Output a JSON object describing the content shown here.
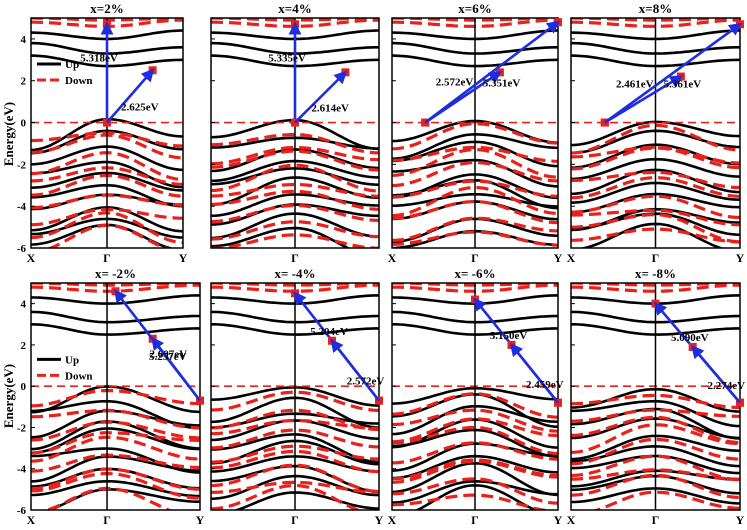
{
  "figure": {
    "ylabel": "Energy(eV)",
    "legend": {
      "up": "Up",
      "down": "Down",
      "placement": "top-left of first panel in each row"
    },
    "colors": {
      "up": "#000000",
      "down": "#e8211c",
      "arrow": "#1f2de0",
      "fermi": "#e8211c"
    }
  },
  "chart_data": [
    {
      "type": "line",
      "title": "x=2%",
      "ylim": [
        -6,
        5
      ],
      "yticks": [
        -6,
        -4,
        -2,
        0,
        2,
        4
      ],
      "xticks": [
        "X",
        "Γ",
        "Y"
      ],
      "annotations": [
        {
          "text": "5.318eV",
          "from": [
            0.5,
            0
          ],
          "to": [
            0.5,
            4.7
          ]
        },
        {
          "text": "2.625eV",
          "from": [
            0.5,
            0
          ],
          "to": [
            0.8,
            2.5
          ]
        }
      ]
    },
    {
      "type": "line",
      "title": "x=4%",
      "ylim": [
        -6,
        5
      ],
      "yticks": [
        -6,
        -4,
        -2,
        0,
        2,
        4
      ],
      "xticks": [
        "",
        "Γ",
        ""
      ],
      "annotations": [
        {
          "text": "5.335eV",
          "from": [
            0.5,
            0
          ],
          "to": [
            0.5,
            4.7
          ]
        },
        {
          "text": "2.614eV",
          "from": [
            0.5,
            0
          ],
          "to": [
            0.8,
            2.4
          ]
        }
      ]
    },
    {
      "type": "line",
      "title": "x=6%",
      "ylim": [
        -6,
        5
      ],
      "yticks": [
        -6,
        -4,
        -2,
        0,
        2,
        4
      ],
      "xticks": [
        "X",
        "Γ",
        "Y"
      ],
      "annotations": [
        {
          "text": "2.572eV",
          "from": [
            0.2,
            0
          ],
          "to": [
            0.65,
            2.4
          ]
        },
        {
          "text": "5.351eV",
          "from": [
            0.2,
            0
          ],
          "to": [
            1.0,
            4.8
          ]
        }
      ]
    },
    {
      "type": "line",
      "title": "x=8%",
      "ylim": [
        -6,
        5
      ],
      "yticks": [
        -6,
        -4,
        -2,
        0,
        2,
        4
      ],
      "xticks": [
        "X",
        "Γ",
        "Y"
      ],
      "annotations": [
        {
          "text": "2.461eV",
          "from": [
            0.2,
            0
          ],
          "to": [
            0.65,
            2.2
          ]
        },
        {
          "text": "5.361eV",
          "from": [
            0.2,
            0
          ],
          "to": [
            1.0,
            4.7
          ]
        }
      ]
    },
    {
      "type": "line",
      "title": "x= -2%",
      "ylim": [
        -6,
        5
      ],
      "yticks": [
        -6,
        -4,
        -2,
        0,
        2,
        4
      ],
      "xticks": [
        "X",
        "Γ",
        "Y"
      ],
      "annotations": [
        {
          "text": "2.607eV",
          "from": [
            1.0,
            -0.7
          ],
          "to": [
            0.72,
            2.3
          ]
        },
        {
          "text": "5.257eV",
          "from": [
            1.0,
            -0.7
          ],
          "to": [
            0.5,
            4.6
          ]
        }
      ]
    },
    {
      "type": "line",
      "title": "x= -4%",
      "ylim": [
        -6,
        5
      ],
      "yticks": [
        -6,
        -4,
        -2,
        0,
        2,
        4
      ],
      "xticks": [
        "",
        "Γ",
        "Y"
      ],
      "annotations": [
        {
          "text": "5.204eV",
          "from": [
            1.0,
            -0.7
          ],
          "to": [
            0.5,
            4.5
          ]
        },
        {
          "text": "2.572eV",
          "from": [
            1.0,
            -0.7
          ],
          "to": [
            0.72,
            2.2
          ]
        }
      ]
    },
    {
      "type": "line",
      "title": "x= -6%",
      "ylim": [
        -6,
        5
      ],
      "yticks": [
        -6,
        -4,
        -2,
        0,
        2,
        4
      ],
      "xticks": [
        "X",
        "Γ",
        "Y"
      ],
      "annotations": [
        {
          "text": "5.150eV",
          "from": [
            1.0,
            -0.8
          ],
          "to": [
            0.5,
            4.2
          ]
        },
        {
          "text": "2.459eV",
          "from": [
            1.0,
            -0.8
          ],
          "to": [
            0.72,
            2.0
          ]
        }
      ]
    },
    {
      "type": "line",
      "title": "x= -8%",
      "ylim": [
        -6,
        5
      ],
      "yticks": [
        -6,
        -4,
        -2,
        0,
        2,
        4
      ],
      "xticks": [
        "X",
        "Γ",
        "Y"
      ],
      "annotations": [
        {
          "text": "5.090eV",
          "from": [
            1.0,
            -0.8
          ],
          "to": [
            0.5,
            4.0
          ]
        },
        {
          "text": "2.274eV",
          "from": [
            1.0,
            -0.8
          ],
          "to": [
            0.72,
            1.9
          ]
        }
      ]
    }
  ]
}
